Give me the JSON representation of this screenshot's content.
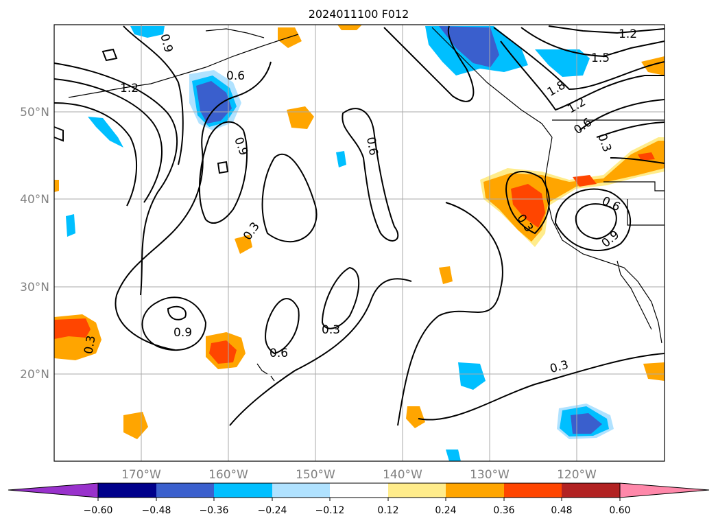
{
  "title": "2024011100 F012",
  "axes": {
    "latitude_labels": [
      "50°N",
      "40°N",
      "30°N",
      "20°N"
    ],
    "longitude_labels": [
      "170°W",
      "160°W",
      "150°W",
      "140°W",
      "130°W",
      "120°W"
    ]
  },
  "colorbar": {
    "ticks": [
      "−0.60",
      "−0.48",
      "−0.36",
      "−0.24",
      "−0.12",
      "0.12",
      "0.24",
      "0.36",
      "0.48",
      "0.60"
    ],
    "colors": [
      "#9932cc",
      "#00008b",
      "#3a5fcd",
      "#00bfff",
      "#b0e2ff",
      "#ffffff",
      "#ffec8b",
      "#ffa500",
      "#ff4500",
      "#b22222",
      "#ff88aa"
    ]
  },
  "contour_labels": [
    "1.2",
    "0.6",
    "0.9",
    "0.3",
    "1.5",
    "1.8",
    "1.2",
    "0.6",
    "0.3",
    "0.6",
    "0.9",
    "0.3",
    "0.9",
    "0.6",
    "0.3",
    "0.3",
    "0.3",
    "0.6",
    "1.2",
    "0.9"
  ],
  "colors": {
    "contour": "#000000",
    "grid": "#aaaaaa",
    "coast": "#000000"
  }
}
